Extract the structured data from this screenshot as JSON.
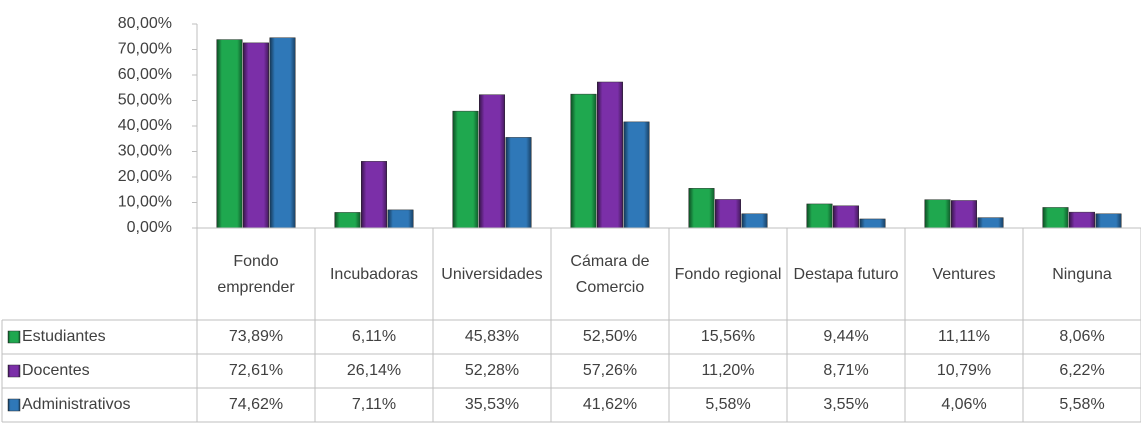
{
  "chart_data": {
    "type": "bar",
    "categories": [
      "Fondo emprender",
      "Incubadoras",
      "Universidades",
      "Cámara de Comercio",
      "Fondo regional",
      "Destapa futuro",
      "Ventures",
      "Ninguna"
    ],
    "series": [
      {
        "name": "Estudiantes",
        "color": "#1fa84f",
        "values": [
          73.89,
          6.11,
          45.83,
          52.5,
          15.56,
          9.44,
          11.11,
          8.06
        ],
        "value_labels": [
          "73,89%",
          "6,11%",
          "45,83%",
          "52,50%",
          "15,56%",
          "9,44%",
          "11,11%",
          "8,06%"
        ]
      },
      {
        "name": "Docentes",
        "color": "#7b2fa8",
        "values": [
          72.61,
          26.14,
          52.28,
          57.26,
          11.2,
          8.71,
          10.79,
          6.22
        ],
        "value_labels": [
          "72,61%",
          "26,14%",
          "52,28%",
          "57,26%",
          "11,20%",
          "8,71%",
          "10,79%",
          "6,22%"
        ]
      },
      {
        "name": "Administrativos",
        "color": "#2f78b8",
        "values": [
          74.62,
          7.11,
          35.53,
          41.62,
          5.58,
          3.55,
          4.06,
          5.58
        ],
        "value_labels": [
          "74,62%",
          "7,11%",
          "35,53%",
          "41,62%",
          "5,58%",
          "3,55%",
          "4,06%",
          "5,58%"
        ]
      }
    ],
    "ylim": [
      0,
      80
    ],
    "yticks": [
      {
        "value": 0,
        "label": "0,00%"
      },
      {
        "value": 10,
        "label": "10,00%"
      },
      {
        "value": 20,
        "label": "20,00%"
      },
      {
        "value": 30,
        "label": "30,00%"
      },
      {
        "value": 40,
        "label": "40,00%"
      },
      {
        "value": 50,
        "label": "50,00%"
      },
      {
        "value": 60,
        "label": "60,00%"
      },
      {
        "value": 70,
        "label": "70,00%"
      },
      {
        "value": 80,
        "label": "80,00%"
      }
    ],
    "data_table": true
  }
}
